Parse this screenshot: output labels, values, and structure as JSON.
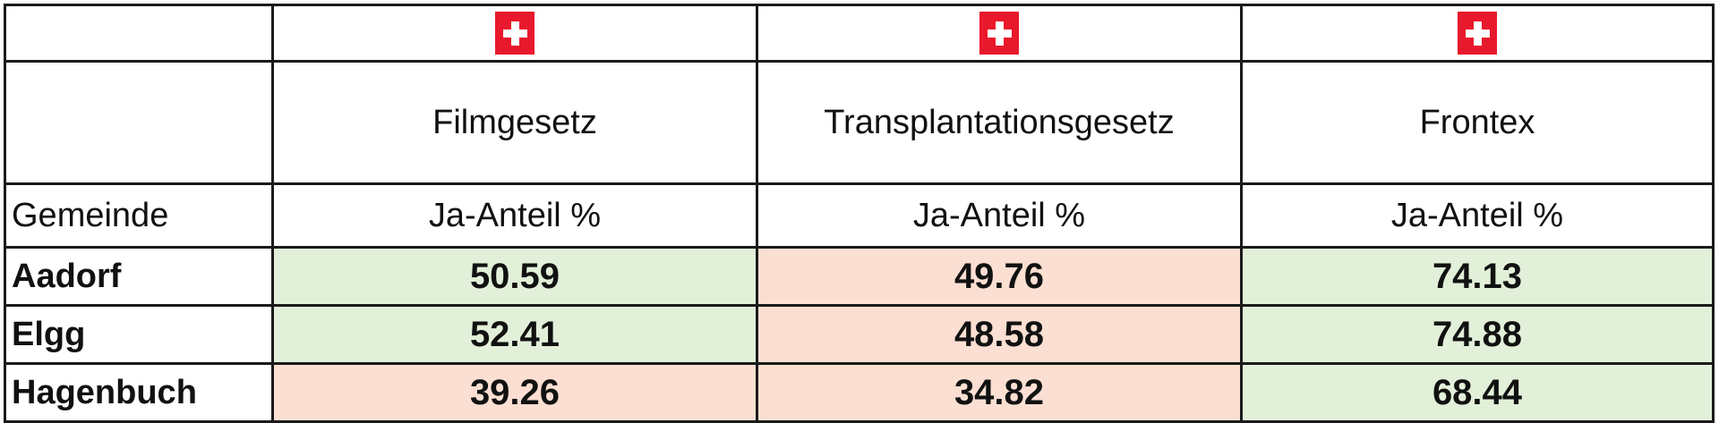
{
  "table": {
    "header_label": "Gemeinde",
    "columns": [
      {
        "title": "Filmgesetz",
        "subheader": "Ja-Anteil %",
        "icon": "swiss-flag-icon"
      },
      {
        "title": "Transplantationsgesetz",
        "subheader": "Ja-Anteil %",
        "icon": "swiss-flag-icon"
      },
      {
        "title": "Frontex",
        "subheader": "Ja-Anteil %",
        "icon": "swiss-flag-icon"
      }
    ],
    "rows": [
      {
        "name": "Aadorf",
        "values": [
          "50.59",
          "49.76",
          "74.13"
        ]
      },
      {
        "name": "Elgg",
        "values": [
          "52.41",
          "48.58",
          "74.88"
        ]
      },
      {
        "name": "Hagenbuch",
        "values": [
          "39.26",
          "34.82",
          "68.44"
        ]
      }
    ]
  },
  "colors": {
    "accepted_fill": "#e2f0d9",
    "rejected_fill": "#fbdfd2",
    "flag_red": "#e8192c"
  }
}
